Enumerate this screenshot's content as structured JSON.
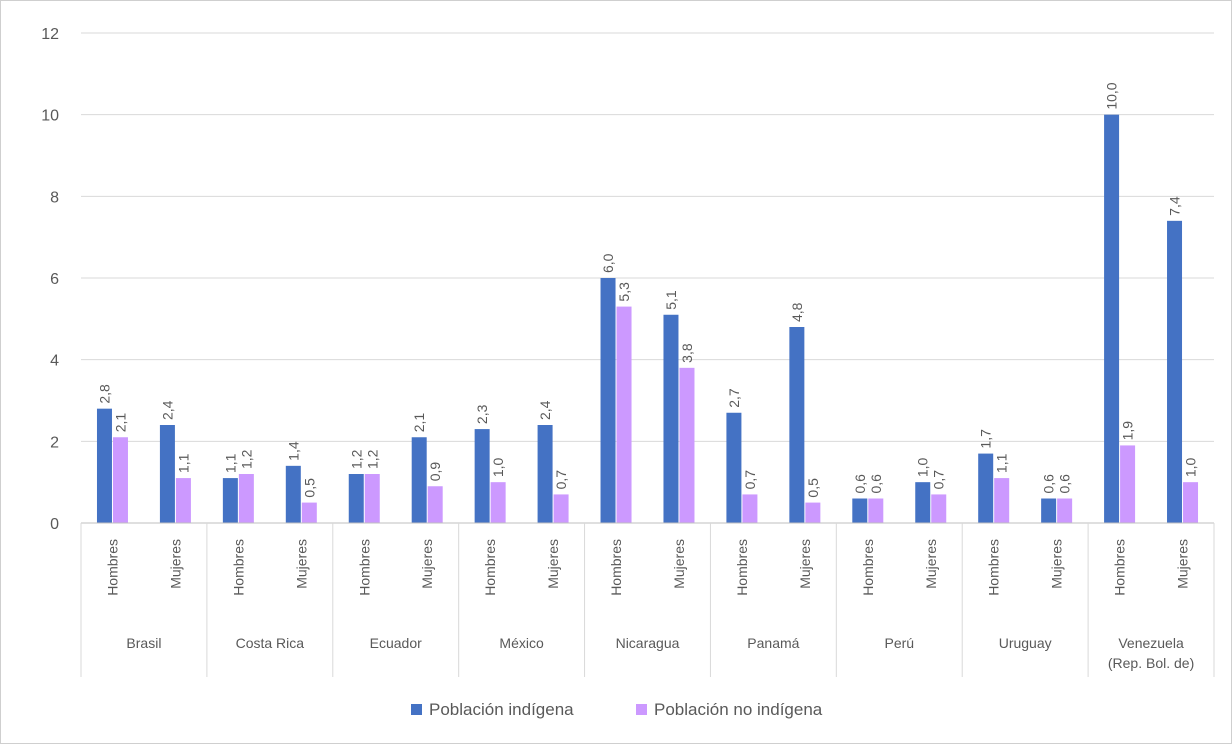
{
  "chart_data": {
    "type": "bar",
    "y_ticks": [
      "0",
      "2",
      "4",
      "6",
      "8",
      "10",
      "12"
    ],
    "ylim": [
      0,
      12
    ],
    "grid": true,
    "legend_position": "bottom",
    "series": [
      {
        "name": "Población indígena",
        "color": "#4472c4"
      },
      {
        "name": "Población no indígena",
        "color": "#cc99ff"
      }
    ],
    "groups": [
      {
        "country": "Brasil",
        "bars": [
          {
            "sex": "Hombres",
            "values": [
              2.8,
              2.1
            ],
            "labels": [
              "2,8",
              "2,1"
            ]
          },
          {
            "sex": "Mujeres",
            "values": [
              2.4,
              1.1
            ],
            "labels": [
              "2,4",
              "1,1"
            ]
          }
        ]
      },
      {
        "country": "Costa Rica",
        "bars": [
          {
            "sex": "Hombres",
            "values": [
              1.1,
              1.2
            ],
            "labels": [
              "1,1",
              "1,2"
            ]
          },
          {
            "sex": "Mujeres",
            "values": [
              1.4,
              0.5
            ],
            "labels": [
              "1,4",
              "0,5"
            ]
          }
        ]
      },
      {
        "country": "Ecuador",
        "bars": [
          {
            "sex": "Hombres",
            "values": [
              1.2,
              1.2
            ],
            "labels": [
              "1,2",
              "1,2"
            ]
          },
          {
            "sex": "Mujeres",
            "values": [
              2.1,
              0.9
            ],
            "labels": [
              "2,1",
              "0,9"
            ]
          }
        ]
      },
      {
        "country": "México",
        "bars": [
          {
            "sex": "Hombres",
            "values": [
              2.3,
              1.0
            ],
            "labels": [
              "2,3",
              "1,0"
            ]
          },
          {
            "sex": "Mujeres",
            "values": [
              2.4,
              0.7
            ],
            "labels": [
              "2,4",
              "0,7"
            ]
          }
        ]
      },
      {
        "country": "Nicaragua",
        "bars": [
          {
            "sex": "Hombres",
            "values": [
              6.0,
              5.3
            ],
            "labels": [
              "6,0",
              "5,3"
            ]
          },
          {
            "sex": "Mujeres",
            "values": [
              5.1,
              3.8
            ],
            "labels": [
              "5,1",
              "3,8"
            ]
          }
        ]
      },
      {
        "country": "Panamá",
        "bars": [
          {
            "sex": "Hombres",
            "values": [
              2.7,
              0.7
            ],
            "labels": [
              "2,7",
              "0,7"
            ]
          },
          {
            "sex": "Mujeres",
            "values": [
              4.8,
              0.5
            ],
            "labels": [
              "4,8",
              "0,5"
            ]
          }
        ]
      },
      {
        "country": "Perú",
        "bars": [
          {
            "sex": "Hombres",
            "values": [
              0.6,
              0.6
            ],
            "labels": [
              "0,6",
              "0,6"
            ]
          },
          {
            "sex": "Mujeres",
            "values": [
              1.0,
              0.7
            ],
            "labels": [
              "1,0",
              "0,7"
            ]
          }
        ]
      },
      {
        "country": "Uruguay",
        "bars": [
          {
            "sex": "Hombres",
            "values": [
              1.7,
              1.1
            ],
            "labels": [
              "1,7",
              "1,1"
            ]
          },
          {
            "sex": "Mujeres",
            "values": [
              0.6,
              0.6
            ],
            "labels": [
              "0,6",
              "0,6"
            ]
          }
        ]
      },
      {
        "country": [
          "Venezuela",
          "(Rep. Bol. de)"
        ],
        "bars": [
          {
            "sex": "Hombres",
            "values": [
              10.0,
              1.9
            ],
            "labels": [
              "10,0",
              "1,9"
            ]
          },
          {
            "sex": "Mujeres",
            "values": [
              7.4,
              1.0
            ],
            "labels": [
              "7,4",
              "1,0"
            ]
          }
        ]
      }
    ]
  }
}
